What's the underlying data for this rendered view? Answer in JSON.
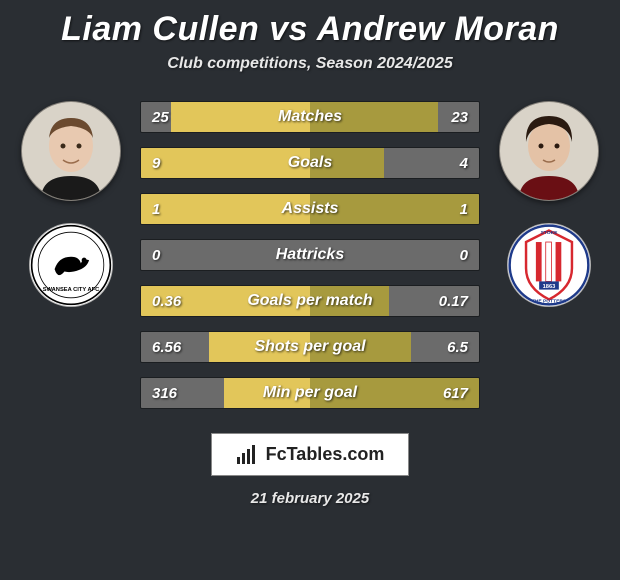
{
  "title": "Liam Cullen vs Andrew Moran",
  "subtitle": "Club competitions, Season 2024/2025",
  "date": "21 february 2025",
  "brand": "FcTables.com",
  "colors": {
    "background": "#2a2e33",
    "bar_left": "#e2c65a",
    "bar_right": "#a79a3e",
    "bar_empty": "#6b6b6b",
    "text": "#ffffff"
  },
  "player1": {
    "name": "Liam Cullen",
    "club": "Swansea City",
    "photo_skin": "#e8c9b0",
    "photo_hair": "#6b4a2f",
    "club_bg": "#ffffff",
    "club_primary": "#000000"
  },
  "player2": {
    "name": "Andrew Moran",
    "club": "Stoke City",
    "photo_skin": "#e4c2a6",
    "photo_hair": "#2a1a10",
    "club_bg": "#ffffff",
    "club_primary": "#d7282f",
    "club_secondary": "#1e3a8a"
  },
  "stats": [
    {
      "name": "Matches",
      "p1": "25",
      "p2": "23",
      "p1_pct": 82,
      "p2_pct": 76
    },
    {
      "name": "Goals",
      "p1": "9",
      "p2": "4",
      "p1_pct": 100,
      "p2_pct": 44
    },
    {
      "name": "Assists",
      "p1": "1",
      "p2": "1",
      "p1_pct": 100,
      "p2_pct": 100
    },
    {
      "name": "Hattricks",
      "p1": "0",
      "p2": "0",
      "p1_pct": 0,
      "p2_pct": 0
    },
    {
      "name": "Goals per match",
      "p1": "0.36",
      "p2": "0.17",
      "p1_pct": 100,
      "p2_pct": 47
    },
    {
      "name": "Shots per goal",
      "p1": "6.56",
      "p2": "6.5",
      "p1_pct": 60,
      "p2_pct": 60
    },
    {
      "name": "Min per goal",
      "p1": "316",
      "p2": "617",
      "p1_pct": 51,
      "p2_pct": 100
    }
  ]
}
